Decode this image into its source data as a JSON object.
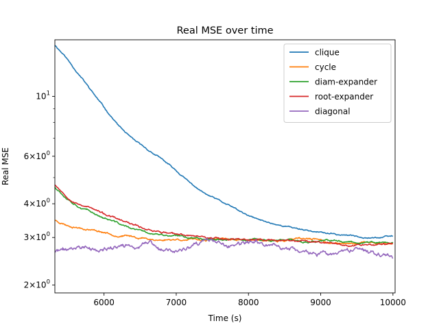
{
  "chart_data": {
    "type": "line",
    "title": "Real MSE over time",
    "xlabel": "Time (s)",
    "ylabel": "Real MSE",
    "xlim": [
      5320,
      10030
    ],
    "ylim": [
      1.87,
      16.2
    ],
    "yscale": "log",
    "grid": false,
    "legend_position": "top-right",
    "x_ticks": [
      {
        "value": 6000,
        "label": "6000"
      },
      {
        "value": 7000,
        "label": "7000"
      },
      {
        "value": 8000,
        "label": "8000"
      },
      {
        "value": 9000,
        "label": "9000"
      },
      {
        "value": 10000,
        "label": "10000"
      }
    ],
    "y_ticks": [
      {
        "value": 2,
        "base": "2",
        "exp": "0"
      },
      {
        "value": 3,
        "base": "3",
        "exp": "0"
      },
      {
        "value": 4,
        "base": "4",
        "exp": "0"
      },
      {
        "value": 6,
        "base": "6",
        "exp": "0"
      },
      {
        "value": 10,
        "base": "10",
        "exp": "1"
      }
    ],
    "y_minor_ticks": [
      5,
      7,
      8,
      9
    ],
    "series": [
      {
        "name": "clique",
        "color": "#1f77b4",
        "noise": 0.003,
        "seed": 11,
        "points": [
          [
            5320,
            15.5
          ],
          [
            5450,
            14.2
          ],
          [
            5600,
            12.6
          ],
          [
            5800,
            10.7
          ],
          [
            6000,
            9.1
          ],
          [
            6200,
            7.8
          ],
          [
            6400,
            6.9
          ],
          [
            6600,
            6.35
          ],
          [
            6800,
            5.85
          ],
          [
            7000,
            5.3
          ],
          [
            7200,
            4.75
          ],
          [
            7400,
            4.35
          ],
          [
            7600,
            4.1
          ],
          [
            7800,
            3.85
          ],
          [
            8000,
            3.6
          ],
          [
            8200,
            3.45
          ],
          [
            8400,
            3.35
          ],
          [
            8600,
            3.27
          ],
          [
            8800,
            3.2
          ],
          [
            9000,
            3.13
          ],
          [
            9200,
            3.08
          ],
          [
            9400,
            3.05
          ],
          [
            9600,
            3.02
          ],
          [
            9800,
            3.0
          ],
          [
            10000,
            3.03
          ]
        ]
      },
      {
        "name": "cycle",
        "color": "#ff7f0e",
        "noise": 0.004,
        "seed": 23,
        "points": [
          [
            5320,
            3.48
          ],
          [
            5500,
            3.33
          ],
          [
            5800,
            3.22
          ],
          [
            6000,
            3.14
          ],
          [
            6200,
            3.05
          ],
          [
            6400,
            3.02
          ],
          [
            6600,
            2.97
          ],
          [
            6800,
            2.93
          ],
          [
            7000,
            2.96
          ],
          [
            7300,
            2.93
          ],
          [
            7500,
            2.95
          ],
          [
            7800,
            2.95
          ],
          [
            8000,
            2.94
          ],
          [
            8200,
            2.92
          ],
          [
            8400,
            2.9
          ],
          [
            8600,
            2.94
          ],
          [
            8800,
            2.96
          ],
          [
            9000,
            2.93
          ],
          [
            9200,
            2.84
          ],
          [
            9400,
            2.85
          ],
          [
            9600,
            2.88
          ],
          [
            9800,
            2.86
          ],
          [
            10000,
            2.85
          ]
        ]
      },
      {
        "name": "diam-expander",
        "color": "#2ca02c",
        "noise": 0.004,
        "seed": 37,
        "points": [
          [
            5320,
            4.62
          ],
          [
            5450,
            4.3
          ],
          [
            5600,
            4.0
          ],
          [
            5800,
            3.75
          ],
          [
            6000,
            3.55
          ],
          [
            6200,
            3.38
          ],
          [
            6400,
            3.22
          ],
          [
            6600,
            3.13
          ],
          [
            6800,
            3.06
          ],
          [
            7000,
            3.03
          ],
          [
            7200,
            3.0
          ],
          [
            7400,
            2.98
          ],
          [
            7600,
            2.96
          ],
          [
            7800,
            2.95
          ],
          [
            8000,
            2.94
          ],
          [
            8200,
            2.93
          ],
          [
            8400,
            2.92
          ],
          [
            8600,
            2.92
          ],
          [
            8800,
            2.9
          ],
          [
            9000,
            2.9
          ],
          [
            9200,
            2.91
          ],
          [
            9400,
            2.9
          ],
          [
            9600,
            2.88
          ],
          [
            9800,
            2.87
          ],
          [
            10000,
            2.86
          ]
        ]
      },
      {
        "name": "root-expander",
        "color": "#d62728",
        "noise": 0.004,
        "seed": 53,
        "points": [
          [
            5320,
            4.72
          ],
          [
            5450,
            4.35
          ],
          [
            5600,
            4.05
          ],
          [
            5800,
            3.88
          ],
          [
            6000,
            3.66
          ],
          [
            6200,
            3.49
          ],
          [
            6400,
            3.33
          ],
          [
            6600,
            3.22
          ],
          [
            6800,
            3.15
          ],
          [
            7000,
            3.07
          ],
          [
            7200,
            3.05
          ],
          [
            7400,
            3.02
          ],
          [
            7600,
            2.99
          ],
          [
            7800,
            2.96
          ],
          [
            8000,
            2.95
          ],
          [
            8200,
            2.94
          ],
          [
            8400,
            2.92
          ],
          [
            8600,
            2.92
          ],
          [
            8800,
            2.9
          ],
          [
            9000,
            2.88
          ],
          [
            9200,
            2.86
          ],
          [
            9400,
            2.82
          ],
          [
            9600,
            2.83
          ],
          [
            9800,
            2.83
          ],
          [
            10000,
            2.84
          ]
        ]
      },
      {
        "name": "diagonal",
        "color": "#9467bd",
        "noise": 0.009,
        "seed": 71,
        "points": [
          [
            5320,
            2.67
          ],
          [
            5500,
            2.7
          ],
          [
            5700,
            2.78
          ],
          [
            5900,
            2.68
          ],
          [
            6100,
            2.72
          ],
          [
            6300,
            2.8
          ],
          [
            6500,
            2.75
          ],
          [
            6650,
            2.88
          ],
          [
            6800,
            2.66
          ],
          [
            7000,
            2.68
          ],
          [
            7200,
            2.74
          ],
          [
            7400,
            2.88
          ],
          [
            7550,
            2.9
          ],
          [
            7700,
            2.76
          ],
          [
            7900,
            2.82
          ],
          [
            8100,
            2.85
          ],
          [
            8300,
            2.83
          ],
          [
            8500,
            2.75
          ],
          [
            8700,
            2.68
          ],
          [
            8900,
            2.62
          ],
          [
            9100,
            2.58
          ],
          [
            9300,
            2.6
          ],
          [
            9500,
            2.7
          ],
          [
            9700,
            2.66
          ],
          [
            9900,
            2.62
          ],
          [
            10000,
            2.58
          ]
        ]
      }
    ]
  }
}
